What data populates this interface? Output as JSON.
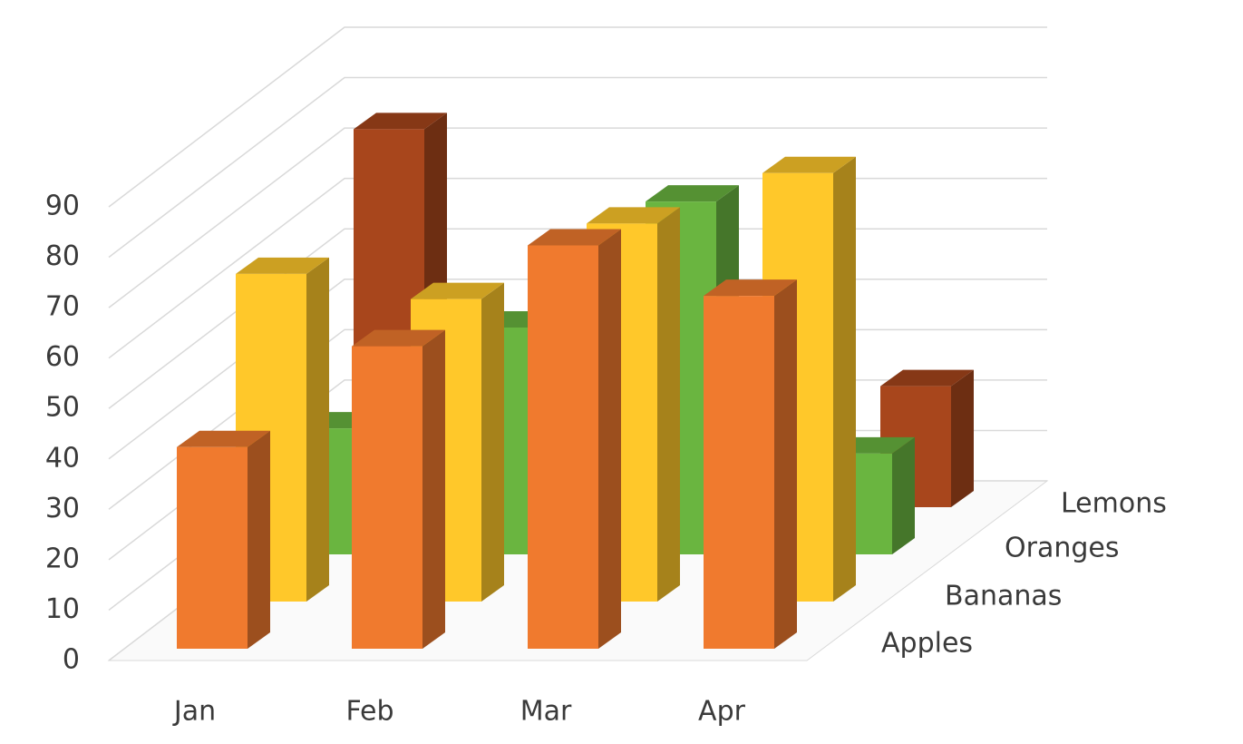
{
  "chart_data": {
    "type": "bar3d",
    "categories": [
      "Jan",
      "Feb",
      "Mar",
      "Apr"
    ],
    "series": [
      {
        "name": "Apples",
        "color": "#f07a2e",
        "values": [
          40,
          60,
          80,
          70
        ]
      },
      {
        "name": "Bananas",
        "color": "#ffc82a",
        "values": [
          65,
          60,
          75,
          85
        ]
      },
      {
        "name": "Oranges",
        "color": "#6ab540",
        "values": [
          25,
          45,
          70,
          20
        ]
      },
      {
        "name": "Lemons",
        "color": "#a8461c",
        "values": [
          75,
          null,
          null,
          24
        ]
      }
    ],
    "ylim": [
      0,
      90
    ],
    "yticks": [
      0,
      10,
      20,
      30,
      40,
      50,
      60,
      70,
      80,
      90
    ],
    "grid": true
  }
}
